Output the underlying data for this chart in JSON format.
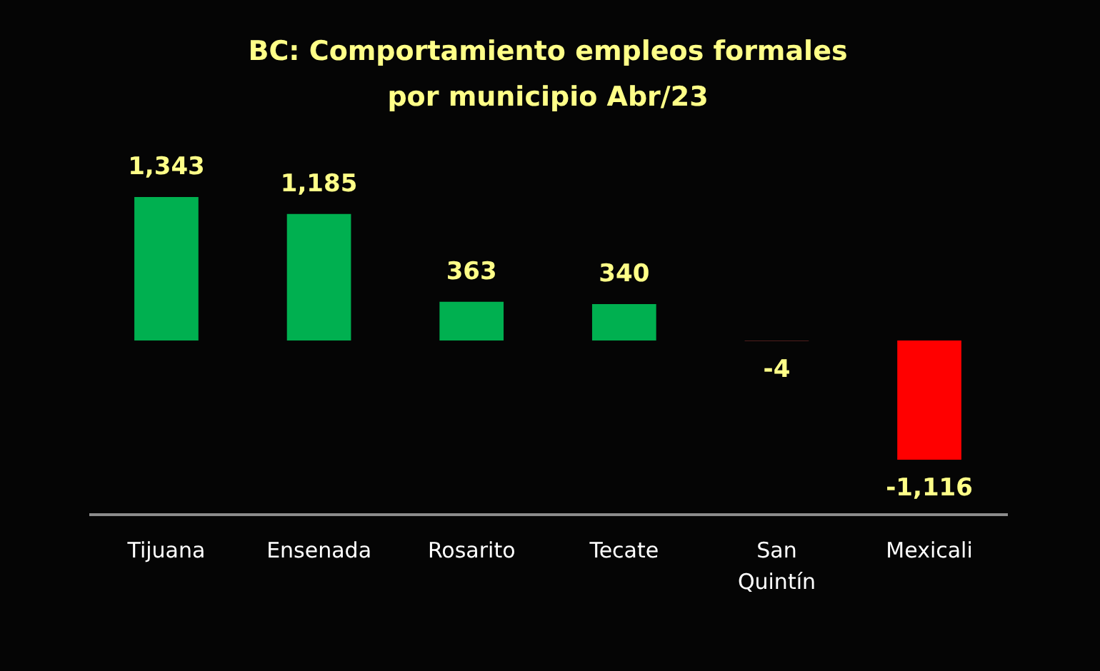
{
  "chart_data": {
    "type": "bar",
    "title": "BC:  Comportamiento empleos formales\npor municipio  Abr/23",
    "categories": [
      "Tijuana",
      "Ensenada",
      "Rosarito",
      "Tecate",
      "San Quintín",
      "Mexicali"
    ],
    "values": [
      1343,
      1185,
      363,
      340,
      -4,
      -1116
    ],
    "value_labels": [
      "1,343",
      "1,185",
      "363",
      "340",
      "-4",
      "-1,116"
    ],
    "colors": [
      "#00b050",
      "#00b050",
      "#00b050",
      "#00b050",
      "#953735",
      "#ff0000"
    ],
    "grid": false,
    "legend": false
  }
}
